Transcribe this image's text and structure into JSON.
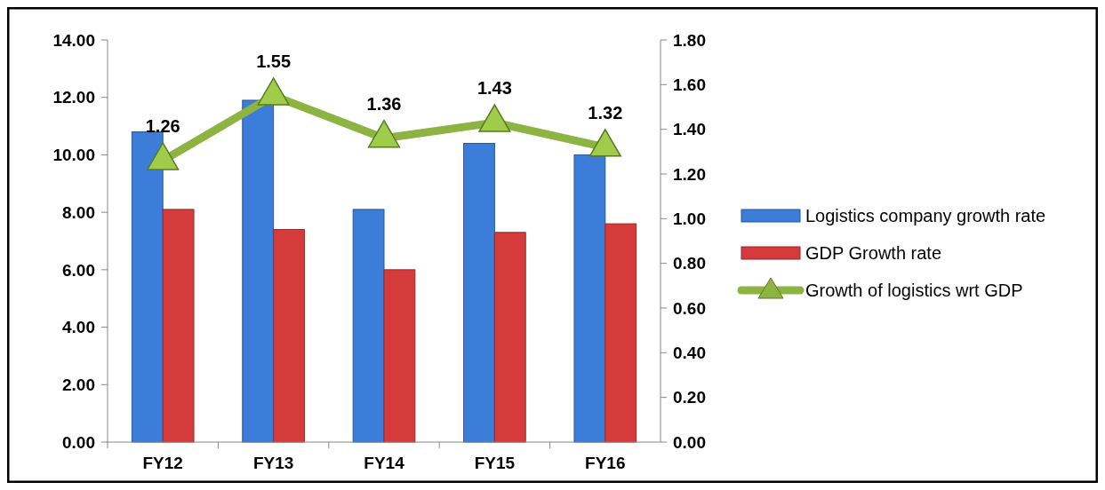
{
  "chart_data": {
    "type": "bar",
    "categories": [
      "FY12",
      "FY13",
      "FY14",
      "FY15",
      "FY16"
    ],
    "series": [
      {
        "name": "Logistics company growth rate",
        "color": "#3b7dd8",
        "values": [
          10.8,
          11.9,
          8.1,
          10.4,
          10.0
        ]
      },
      {
        "name": "GDP Growth rate",
        "color": "#d63b3b",
        "values": [
          8.1,
          7.4,
          6.0,
          7.3,
          7.6
        ]
      },
      {
        "name": "Growth of logistics wrt GDP",
        "type": "line",
        "axis": "y2",
        "color": "#8db443",
        "values": [
          1.26,
          1.55,
          1.36,
          1.43,
          1.32
        ],
        "marker": "triangle",
        "data_labels": true
      }
    ],
    "ylim": [
      0,
      14
    ],
    "yticks": [
      {
        "value": 0,
        "label": "0.00"
      },
      {
        "value": 2,
        "label": "2.00"
      },
      {
        "value": 4,
        "label": "4.00"
      },
      {
        "value": 6,
        "label": "6.00"
      },
      {
        "value": 8,
        "label": "8.00"
      },
      {
        "value": 10,
        "label": "10.00"
      },
      {
        "value": 12,
        "label": "12.00"
      },
      {
        "value": 14,
        "label": "14.00"
      }
    ],
    "y2lim": [
      0,
      1.8
    ],
    "y2ticks": [
      {
        "value": 0,
        "label": "0.00"
      },
      {
        "value": 0.2,
        "label": "0.20"
      },
      {
        "value": 0.4,
        "label": "0.40"
      },
      {
        "value": 0.6,
        "label": "0.60"
      },
      {
        "value": 0.8,
        "label": "0.80"
      },
      {
        "value": 1,
        "label": "1.00"
      },
      {
        "value": 1.2,
        "label": "1.20"
      },
      {
        "value": 1.4,
        "label": "1.40"
      },
      {
        "value": 1.6,
        "label": "1.60"
      },
      {
        "value": 1.8,
        "label": "1.80"
      }
    ],
    "grid": false,
    "legend": "right"
  }
}
